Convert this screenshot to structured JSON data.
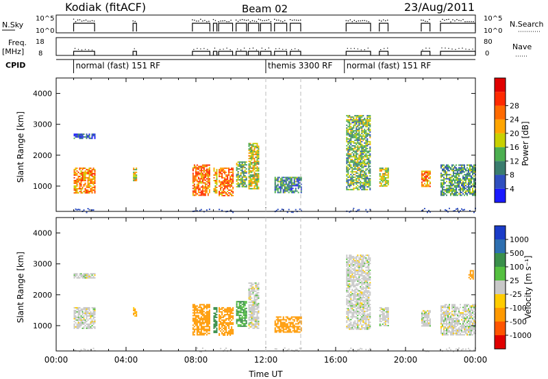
{
  "header": {
    "radar": "Kodiak (fitACF)",
    "beam": "Beam 02",
    "date": "23/Aug/2011"
  },
  "chart_data": [
    {
      "type": "line",
      "panel": "noise-panel",
      "left_label": "N.Sky",
      "right_label": "N.Search",
      "left_ticks": [
        "10^5",
        "10^0"
      ],
      "right_ticks": [
        "10^5",
        "10^0"
      ],
      "scale": "log"
    },
    {
      "type": "line",
      "panel": "frequency-panel",
      "left_label": "Freq.",
      "left_unit": "[MHz]",
      "right_label": "Nave",
      "left_ticks": [
        18,
        8
      ],
      "right_ticks": [
        80,
        0
      ],
      "frequency_segments_ut_hours": [
        [
          1.0,
          2.2
        ],
        [
          4.4,
          4.6
        ],
        [
          7.8,
          8.8
        ],
        [
          9.0,
          9.2
        ],
        [
          9.3,
          10.1
        ],
        [
          10.3,
          10.9
        ],
        [
          11.0,
          11.6
        ],
        [
          11.7,
          12.3
        ],
        [
          12.5,
          13.2
        ],
        [
          13.4,
          14.0
        ],
        [
          16.6,
          18.0
        ],
        [
          18.5,
          19.0
        ],
        [
          20.9,
          21.4
        ],
        [
          22.0,
          24.0
        ]
      ],
      "frequency_mhz": 10.3
    },
    {
      "type": "table",
      "panel": "cpid-bar",
      "label": "CPID",
      "segments": [
        {
          "name": "normal (fast) 151 RF",
          "start": 1.0,
          "end": 12.0
        },
        {
          "name": "themis 3300 RF",
          "start": 12.0,
          "end": 16.5
        },
        {
          "name": "normal (fast) 151 RF",
          "start": 16.5,
          "end": 24.0
        }
      ]
    },
    {
      "type": "heatmap",
      "panel": "power-panel",
      "ylabel": "Slant Range [km]",
      "xlabel": "Time UT",
      "ylim": [
        180,
        4500
      ],
      "xlim": [
        0,
        24
      ],
      "yticks": [
        1000,
        2000,
        3000,
        4000
      ],
      "colorbar": {
        "label": "Power [dB]",
        "ticks": [
          4,
          8,
          12,
          16,
          20,
          24,
          28
        ],
        "colors": [
          "#1a1aff",
          "#2f4fbf",
          "#3a7d6e",
          "#4caf50",
          "#c8d000",
          "#ffa500",
          "#ff6a00",
          "#ff2a00",
          "#e00000"
        ]
      },
      "patches": [
        {
          "t0": 1.0,
          "t1": 2.2,
          "r0": 800,
          "r1": 1600,
          "level": 24
        },
        {
          "t0": 1.0,
          "t1": 2.2,
          "r0": 2550,
          "r1": 2700,
          "level": 6
        },
        {
          "t0": 4.4,
          "t1": 4.6,
          "r0": 1200,
          "r1": 1600,
          "level": 20
        },
        {
          "t0": 7.8,
          "t1": 8.8,
          "r0": 700,
          "r1": 1700,
          "level": 26
        },
        {
          "t0": 9.0,
          "t1": 9.2,
          "r0": 800,
          "r1": 1600,
          "level": 22
        },
        {
          "t0": 9.3,
          "t1": 10.1,
          "r0": 700,
          "r1": 1600,
          "level": 26
        },
        {
          "t0": 10.3,
          "t1": 10.9,
          "r0": 1000,
          "r1": 1800,
          "level": 14
        },
        {
          "t0": 11.0,
          "t1": 11.6,
          "r0": 900,
          "r1": 2400,
          "level": 18
        },
        {
          "t0": 12.5,
          "t1": 14.0,
          "r0": 800,
          "r1": 1300,
          "level": 10
        },
        {
          "t0": 16.6,
          "t1": 18.0,
          "r0": 900,
          "r1": 3300,
          "level": 14
        },
        {
          "t0": 18.5,
          "t1": 19.0,
          "r0": 1000,
          "r1": 1600,
          "level": 18
        },
        {
          "t0": 20.9,
          "t1": 21.4,
          "r0": 1000,
          "r1": 1500,
          "level": 24
        },
        {
          "t0": 22.0,
          "t1": 24.0,
          "r0": 700,
          "r1": 1700,
          "level": 12
        }
      ]
    },
    {
      "type": "heatmap",
      "panel": "velocity-panel",
      "ylabel": "Slant Range [km]",
      "xlabel": "Time UT",
      "ylim": [
        180,
        4500
      ],
      "xlim": [
        0,
        24
      ],
      "yticks": [
        1000,
        2000,
        3000,
        4000
      ],
      "xticks": [
        "00:00",
        "04:00",
        "08:00",
        "12:00",
        "16:00",
        "20:00",
        "00:00"
      ],
      "colorbar": {
        "label": "Velocity [m s⁻¹]",
        "ticks": [
          1000,
          500,
          100,
          25,
          -25,
          -100,
          -500,
          -1000
        ],
        "colors": [
          "#1a3cc8",
          "#2d6fb0",
          "#3a8f4a",
          "#55c040",
          "#c8c8c8",
          "#ffcc00",
          "#ff9900",
          "#ff5500",
          "#e00000"
        ]
      },
      "patches": [
        {
          "t0": 1.0,
          "t1": 2.2,
          "r0": 900,
          "r1": 1600,
          "level": 0
        },
        {
          "t0": 1.0,
          "t1": 2.2,
          "r0": 2550,
          "r1": 2700,
          "level": 0
        },
        {
          "t0": 4.4,
          "t1": 4.6,
          "r0": 1300,
          "r1": 1600,
          "level": -100
        },
        {
          "t0": 7.8,
          "t1": 8.8,
          "r0": 700,
          "r1": 1700,
          "level": -300
        },
        {
          "t0": 9.0,
          "t1": 9.2,
          "r0": 800,
          "r1": 1600,
          "level": 200
        },
        {
          "t0": 9.3,
          "t1": 10.1,
          "r0": 700,
          "r1": 1600,
          "level": -300
        },
        {
          "t0": 10.3,
          "t1": 10.9,
          "r0": 1000,
          "r1": 1800,
          "level": 100
        },
        {
          "t0": 11.0,
          "t1": 11.6,
          "r0": 900,
          "r1": 2400,
          "level": 0
        },
        {
          "t0": 12.5,
          "t1": 14.0,
          "r0": 800,
          "r1": 1300,
          "level": -300
        },
        {
          "t0": 16.6,
          "t1": 18.0,
          "r0": 900,
          "r1": 3300,
          "level": 0
        },
        {
          "t0": 18.5,
          "t1": 19.0,
          "r0": 1000,
          "r1": 1600,
          "level": 0
        },
        {
          "t0": 20.9,
          "t1": 21.4,
          "r0": 1000,
          "r1": 1500,
          "level": 0
        },
        {
          "t0": 22.0,
          "t1": 24.0,
          "r0": 700,
          "r1": 1700,
          "level": 0
        },
        {
          "t0": 23.6,
          "t1": 23.9,
          "r0": 2500,
          "r1": 2800,
          "level": -300
        }
      ]
    }
  ]
}
